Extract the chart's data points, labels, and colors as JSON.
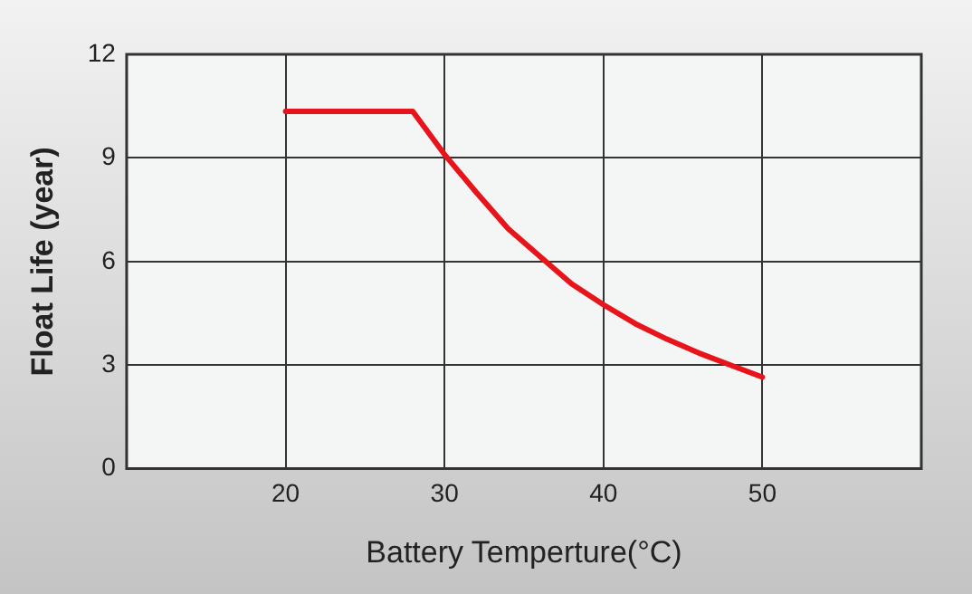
{
  "chart_data": {
    "type": "line",
    "xlabel": "Battery Temperture(°C)",
    "ylabel": "Float Life (year)",
    "x": [
      20,
      28,
      30,
      32,
      34,
      36.5,
      38,
      40,
      42,
      44,
      46,
      48,
      50
    ],
    "series": [
      {
        "color": "#e8141c",
        "values": [
          10.35,
          10.35,
          9.1,
          8.0,
          6.95,
          5.95,
          5.35,
          4.75,
          4.2,
          3.75,
          3.35,
          3.0,
          2.65
        ]
      }
    ],
    "xlim": [
      10,
      60
    ],
    "xticks": [
      20,
      30,
      40,
      50
    ],
    "ylim": [
      0,
      12
    ],
    "yticks": [
      0,
      3,
      6,
      9,
      12
    ],
    "grid": true,
    "legend": false,
    "marker": "none",
    "line_style": "solid"
  }
}
